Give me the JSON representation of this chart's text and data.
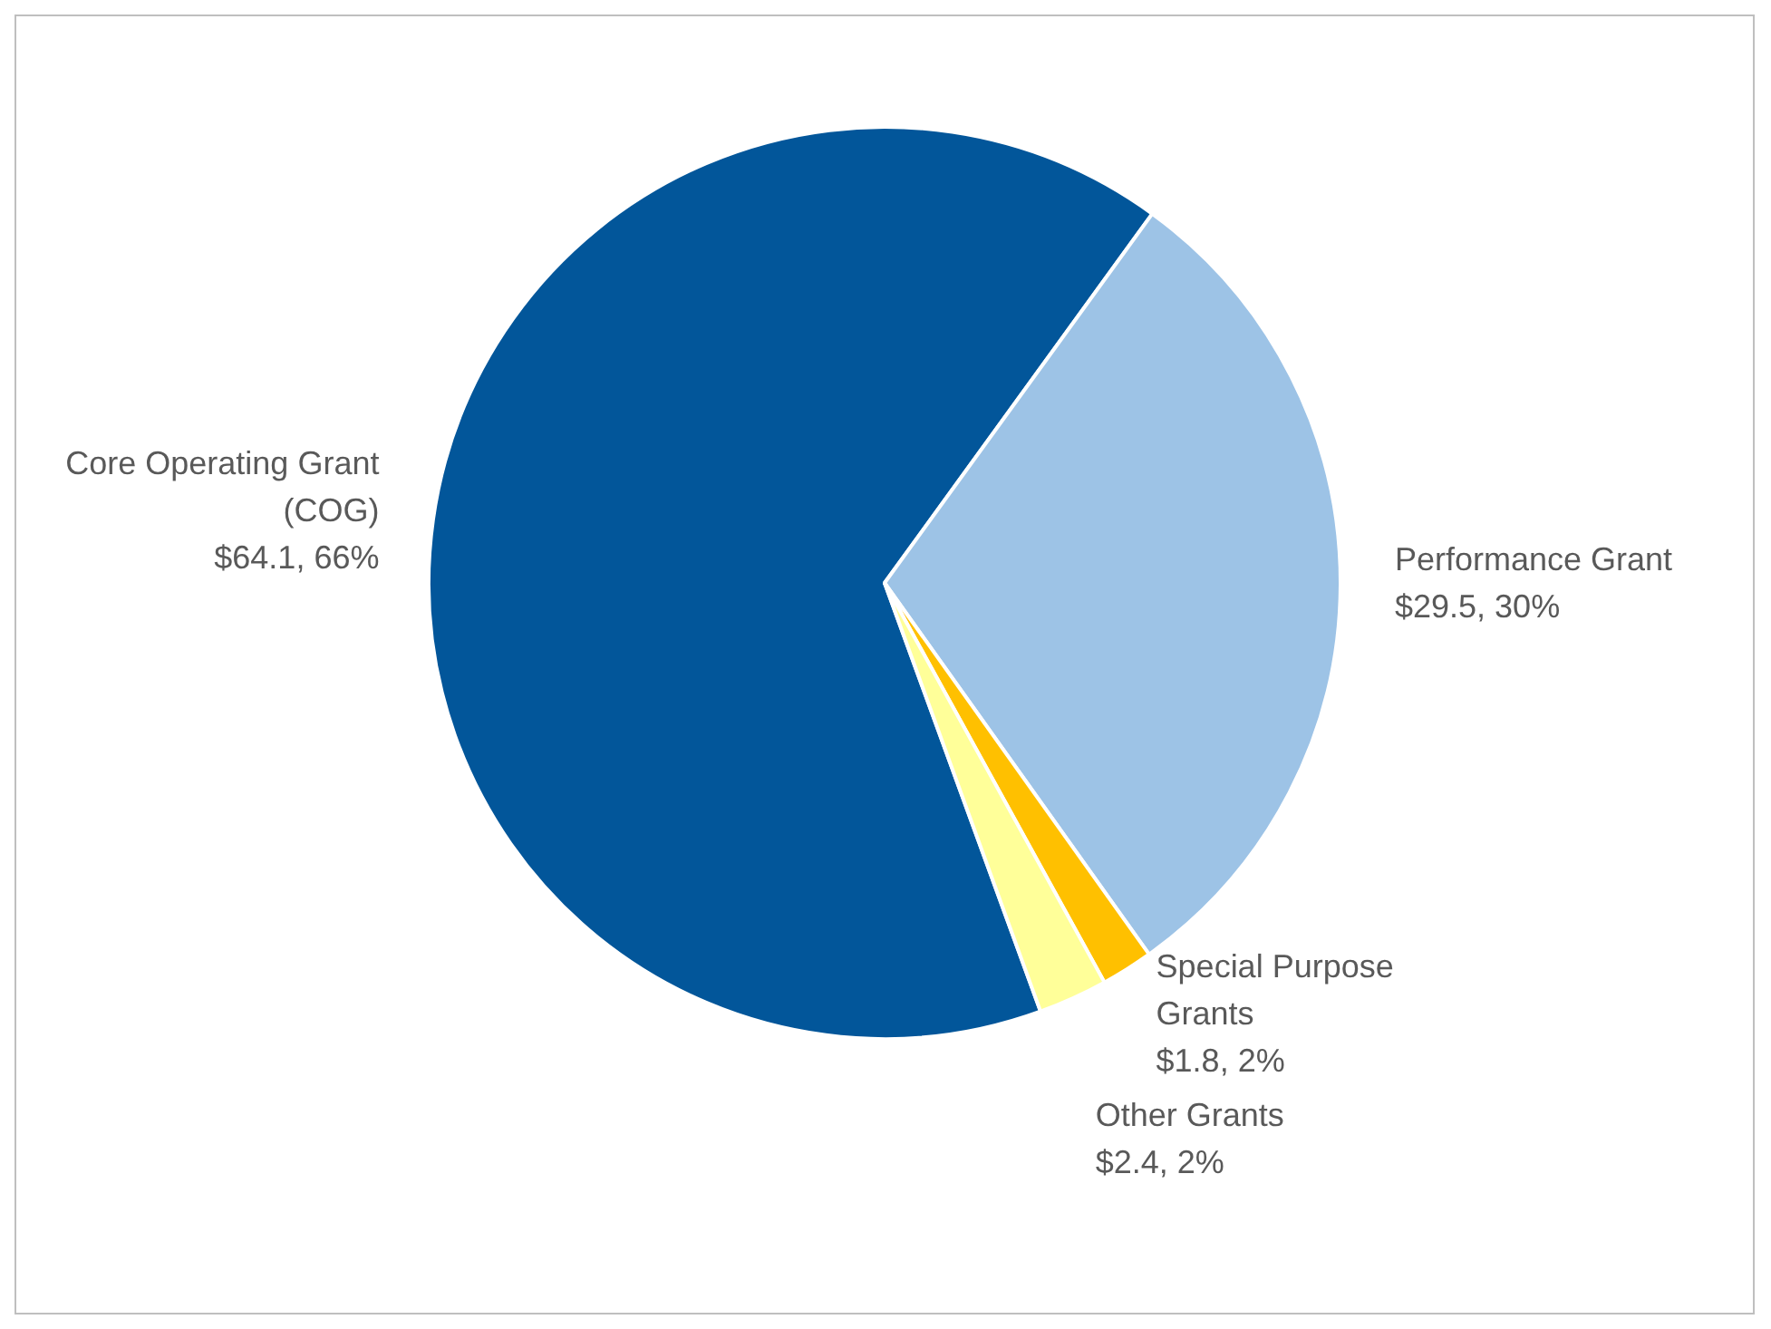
{
  "chart_data": {
    "type": "pie",
    "categories": [
      "Core Operating Grant (COG)",
      "Performance Grant",
      "Special Purpose Grants",
      "Other Grants"
    ],
    "values": [
      64.1,
      29.5,
      1.8,
      2.4
    ],
    "colors": [
      "#02569a",
      "#9dc3e6",
      "#ffc000",
      "#ffff99"
    ],
    "value_labels": [
      "$64.1, 66%",
      "$29.5, 30%",
      "$1.8, 2%",
      "$2.4, 2%"
    ]
  }
}
